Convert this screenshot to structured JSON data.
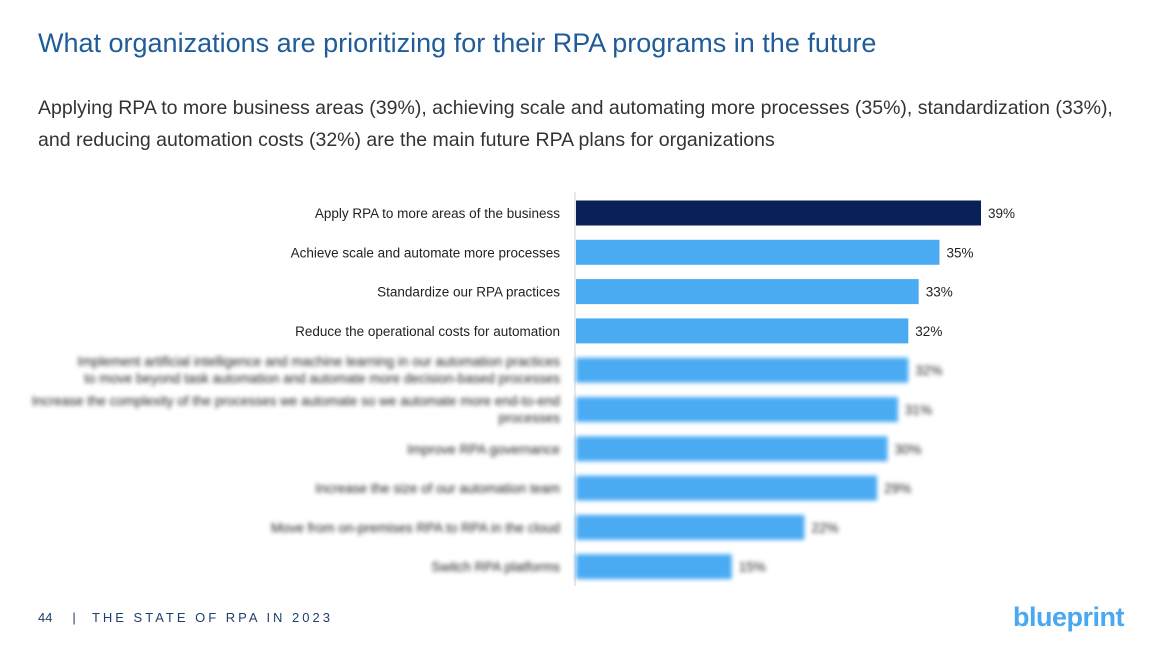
{
  "title": "What organizations are prioritizing for their RPA programs in the future",
  "subtitle": "Applying RPA to more business areas (39%), achieving scale and automating more processes (35%), standardization (33%), and reducing automation costs (32%) are the main future RPA plans for organizations",
  "footer": {
    "page": "44",
    "separator": "|",
    "text": "THE STATE OF RPA IN 2023"
  },
  "logo": "blueprint",
  "chart_data": {
    "type": "bar",
    "orientation": "horizontal",
    "categories": [
      "Apply RPA to more areas of the business",
      "Achieve scale and automate more processes",
      "Standardize our RPA practices",
      "Reduce the operational costs for automation",
      "Implement artificial intelligence and machine learning in our automation practices to move beyond task automation and automate more decision-based processes",
      "Increase the complexity of the processes we automate so we automate more end-to-end processes",
      "Improve RPA governance",
      "Increase the size of our automation team",
      "Move from on-premises RPA to RPA in the cloud",
      "Switch RPA platforms"
    ],
    "values": [
      39,
      35,
      33,
      32,
      32,
      31,
      30,
      29,
      22,
      15
    ],
    "value_labels": [
      "39%",
      "35%",
      "33%",
      "32%",
      "32%",
      "31%",
      "30%",
      "29%",
      "22%",
      "15%"
    ],
    "blurred": [
      false,
      false,
      false,
      false,
      true,
      true,
      true,
      true,
      true,
      true
    ],
    "colors": {
      "highlight": "#0a2158",
      "default": "#4aabf3"
    },
    "grid": false
  }
}
